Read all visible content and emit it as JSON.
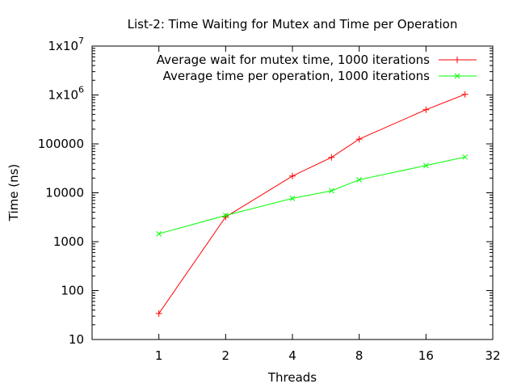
{
  "chart_data": {
    "type": "line",
    "title": "List-2: Time Waiting for Mutex and Time per Operation",
    "xlabel": "Threads",
    "ylabel": "Time (ns)",
    "xscale": "log2",
    "yscale": "log10",
    "xlim": [
      0.5,
      32
    ],
    "ylim": [
      10,
      10000000
    ],
    "x_ticks": [
      {
        "value": 1,
        "label": "1"
      },
      {
        "value": 2,
        "label": "2"
      },
      {
        "value": 4,
        "label": "4"
      },
      {
        "value": 8,
        "label": "8"
      },
      {
        "value": 16,
        "label": "16"
      },
      {
        "value": 32,
        "label": "32"
      }
    ],
    "y_ticks": [
      {
        "value": 10,
        "label": "10"
      },
      {
        "value": 100,
        "label": "100"
      },
      {
        "value": 1000,
        "label": "1000"
      },
      {
        "value": 10000,
        "label": "10000"
      },
      {
        "value": 100000,
        "label": "100000"
      },
      {
        "value": 1000000,
        "label_base": "1x10",
        "label_exp": "6"
      },
      {
        "value": 10000000,
        "label_base": "1x10",
        "label_exp": "7"
      }
    ],
    "legend_position": "top-right",
    "grid": false,
    "series": [
      {
        "name": "Average wait for mutex time, 1000 iterations",
        "color": "#ff0000",
        "marker": "plus",
        "x": [
          1,
          2,
          4,
          6,
          8,
          16,
          24
        ],
        "y": [
          34,
          3200,
          22000,
          53000,
          125000,
          500000,
          1030000
        ]
      },
      {
        "name": "Average time per operation, 1000 iterations",
        "color": "#00ff00",
        "marker": "cross",
        "x": [
          1,
          2,
          4,
          6,
          8,
          16,
          24
        ],
        "y": [
          1450,
          3450,
          7700,
          11000,
          18500,
          36000,
          54000
        ]
      }
    ]
  }
}
